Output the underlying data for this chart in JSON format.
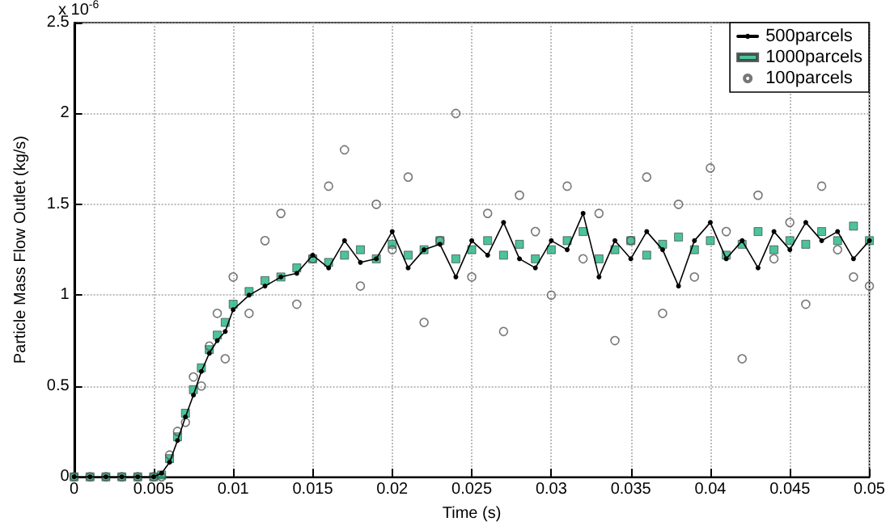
{
  "chart_data": {
    "type": "scatter",
    "xlabel": "Time (s)",
    "ylabel": "Particle Mass Flow Outlet (kg/s)",
    "annotations": [
      "x 10$^{-6}$"
    ],
    "x": [
      0,
      0.001,
      0.002,
      0.003,
      0.004,
      0.005,
      0.0055,
      0.006,
      0.0065,
      0.007,
      0.0075,
      0.008,
      0.0085,
      0.009,
      0.0095,
      0.01,
      0.011,
      0.012,
      0.013,
      0.014,
      0.015,
      0.016,
      0.017,
      0.018,
      0.019,
      0.02,
      0.021,
      0.022,
      0.023,
      0.024,
      0.025,
      0.026,
      0.027,
      0.028,
      0.029,
      0.03,
      0.031,
      0.032,
      0.033,
      0.034,
      0.035,
      0.036,
      0.037,
      0.038,
      0.039,
      0.04,
      0.041,
      0.042,
      0.043,
      0.044,
      0.045,
      0.046,
      0.047,
      0.048,
      0.049,
      0.05
    ],
    "series": [
      {
        "name": "500parcels",
        "type": "line",
        "marker": "circle",
        "line_style": "solid",
        "color": "#000000",
        "values": [
          0,
          0,
          0,
          0,
          0,
          0,
          0.02,
          0.08,
          0.2,
          0.33,
          0.45,
          0.58,
          0.68,
          0.75,
          0.8,
          0.92,
          1.0,
          1.05,
          1.1,
          1.12,
          1.22,
          1.15,
          1.3,
          1.18,
          1.2,
          1.35,
          1.15,
          1.25,
          1.28,
          1.1,
          1.3,
          1.22,
          1.4,
          1.2,
          1.15,
          1.3,
          1.25,
          1.45,
          1.1,
          1.3,
          1.2,
          1.35,
          1.25,
          1.05,
          1.3,
          1.4,
          1.2,
          1.3,
          1.15,
          1.35,
          1.25,
          1.4,
          1.3,
          1.35,
          1.2,
          1.3
        ]
      },
      {
        "name": "1000parcels",
        "marker": "square",
        "color": "#1fb384",
        "values": [
          0,
          0,
          0,
          0,
          0,
          0,
          0.01,
          0.1,
          0.22,
          0.35,
          0.48,
          0.6,
          0.7,
          0.78,
          0.85,
          0.95,
          1.02,
          1.08,
          1.1,
          1.15,
          1.2,
          1.18,
          1.22,
          1.25,
          1.2,
          1.28,
          1.22,
          1.25,
          1.3,
          1.2,
          1.25,
          1.3,
          1.22,
          1.28,
          1.2,
          1.25,
          1.3,
          1.35,
          1.2,
          1.25,
          1.3,
          1.22,
          1.28,
          1.32,
          1.25,
          1.3,
          1.22,
          1.28,
          1.35,
          1.25,
          1.3,
          1.28,
          1.35,
          1.3,
          1.38,
          1.3
        ]
      },
      {
        "name": "100parcels",
        "marker": "circle",
        "color": "#555555",
        "values": [
          0,
          0,
          0,
          0,
          0,
          0,
          0.0,
          0.12,
          0.25,
          0.3,
          0.55,
          0.5,
          0.72,
          0.9,
          0.65,
          1.1,
          0.9,
          1.3,
          1.45,
          0.95,
          1.2,
          1.6,
          1.8,
          1.05,
          1.5,
          1.25,
          1.65,
          0.85,
          1.3,
          2.0,
          1.1,
          1.45,
          0.8,
          1.55,
          1.35,
          1.0,
          1.6,
          1.2,
          1.45,
          0.75,
          1.3,
          1.65,
          0.9,
          1.5,
          1.1,
          1.7,
          1.35,
          0.65,
          1.55,
          1.2,
          1.4,
          0.95,
          1.6,
          1.25,
          1.1,
          1.05
        ]
      }
    ],
    "xlim": [
      0,
      0.05
    ],
    "xticks": [
      0,
      0.005,
      0.01,
      0.015,
      0.02,
      0.025,
      0.03,
      0.035,
      0.04,
      0.045,
      0.05
    ],
    "ylim": [
      0,
      2.5
    ],
    "yticks": [
      0,
      0.5,
      1,
      1.5,
      2,
      2.5
    ],
    "grid": true,
    "legend": "top right"
  }
}
